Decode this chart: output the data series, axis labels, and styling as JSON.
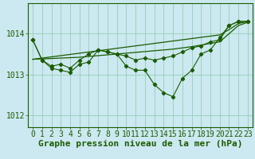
{
  "title": "Graphe pression niveau de la mer (hPa)",
  "bg_color": "#cce8f0",
  "plot_bg_color": "#cce8f0",
  "grid_color": "#88ccaa",
  "line_color": "#1a5c00",
  "marker_color": "#1a5c00",
  "xlim": [
    -0.5,
    23.5
  ],
  "ylim": [
    1011.7,
    1014.75
  ],
  "yticks": [
    1012,
    1013,
    1014
  ],
  "xticks": [
    0,
    1,
    2,
    3,
    4,
    5,
    6,
    7,
    8,
    9,
    10,
    11,
    12,
    13,
    14,
    15,
    16,
    17,
    18,
    19,
    20,
    21,
    22,
    23
  ],
  "series_main": [
    1013.85,
    1013.35,
    1013.15,
    1013.1,
    1013.05,
    1013.25,
    1013.3,
    1013.6,
    1013.55,
    1013.5,
    1013.2,
    1013.1,
    1013.1,
    1012.75,
    1012.55,
    1012.45,
    1012.9,
    1013.1,
    1013.5,
    1013.6,
    1013.9,
    1014.2,
    1014.3,
    1014.3
  ],
  "series_wavy": [
    1013.85,
    1013.35,
    1013.2,
    1013.25,
    1013.15,
    1013.35,
    1013.5,
    1013.6,
    1013.55,
    1013.5,
    1013.45,
    1013.35,
    1013.4,
    1013.35,
    1013.4,
    1013.45,
    1013.55,
    1013.65,
    1013.7,
    1013.8,
    1013.85,
    1014.2,
    1014.3,
    1014.3
  ],
  "series_trend1": [
    1013.37,
    1013.4,
    1013.43,
    1013.46,
    1013.49,
    1013.52,
    1013.55,
    1013.58,
    1013.61,
    1013.64,
    1013.67,
    1013.7,
    1013.73,
    1013.76,
    1013.79,
    1013.82,
    1013.85,
    1013.88,
    1013.91,
    1013.94,
    1013.97,
    1014.1,
    1014.25,
    1014.3
  ],
  "series_trend2": [
    1013.37,
    1013.38,
    1013.39,
    1013.4,
    1013.41,
    1013.42,
    1013.44,
    1013.46,
    1013.48,
    1013.5,
    1013.52,
    1013.54,
    1013.56,
    1013.58,
    1013.6,
    1013.62,
    1013.65,
    1013.68,
    1013.72,
    1013.76,
    1013.8,
    1014.0,
    1014.2,
    1014.28
  ],
  "xlabel_fontsize": 8,
  "tick_fontsize": 7
}
